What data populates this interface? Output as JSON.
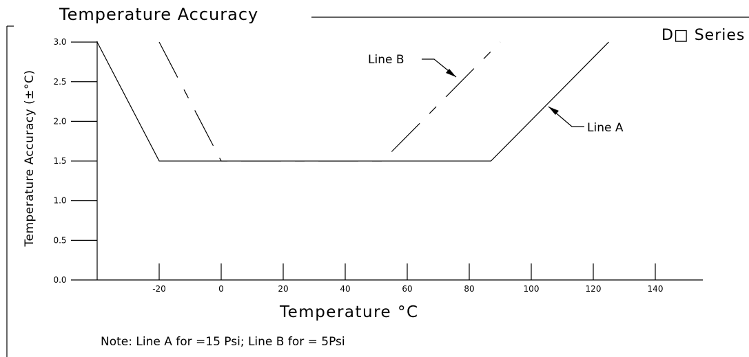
{
  "chart_data": {
    "type": "line",
    "title": "Temperature Accuracy",
    "series_label": "D□ Series",
    "xlabel": "Temperature °C",
    "ylabel": "Temperature Accuracy (±°C)",
    "note": "Note: Line A for =15 Psi; Line B for = 5Psi",
    "xlim": [
      -40,
      155
    ],
    "ylim": [
      0,
      3.0
    ],
    "x_ticks": [
      -20,
      0,
      20,
      40,
      60,
      80,
      100,
      120,
      140
    ],
    "x_tick_labels": [
      "-20",
      "0",
      "20",
      "40",
      "60",
      "80",
      "100",
      "120",
      "140"
    ],
    "y_ticks": [
      0.0,
      0.5,
      1.0,
      1.5,
      2.0,
      2.5,
      3.0
    ],
    "y_tick_labels": [
      "0.0",
      "0.5",
      "1.0",
      "1.5",
      "2.0",
      "2.5",
      "3.0"
    ],
    "series": [
      {
        "name": "Line A",
        "style": "solid",
        "x": [
          -40,
          -20,
          87,
          125
        ],
        "y": [
          3.0,
          1.5,
          1.5,
          3.0
        ]
      },
      {
        "name": "Line B",
        "style": "dashed",
        "x": [
          -20,
          0,
          52,
          90
        ],
        "y": [
          3.0,
          1.5,
          1.5,
          3.0
        ]
      }
    ],
    "grid": false
  }
}
